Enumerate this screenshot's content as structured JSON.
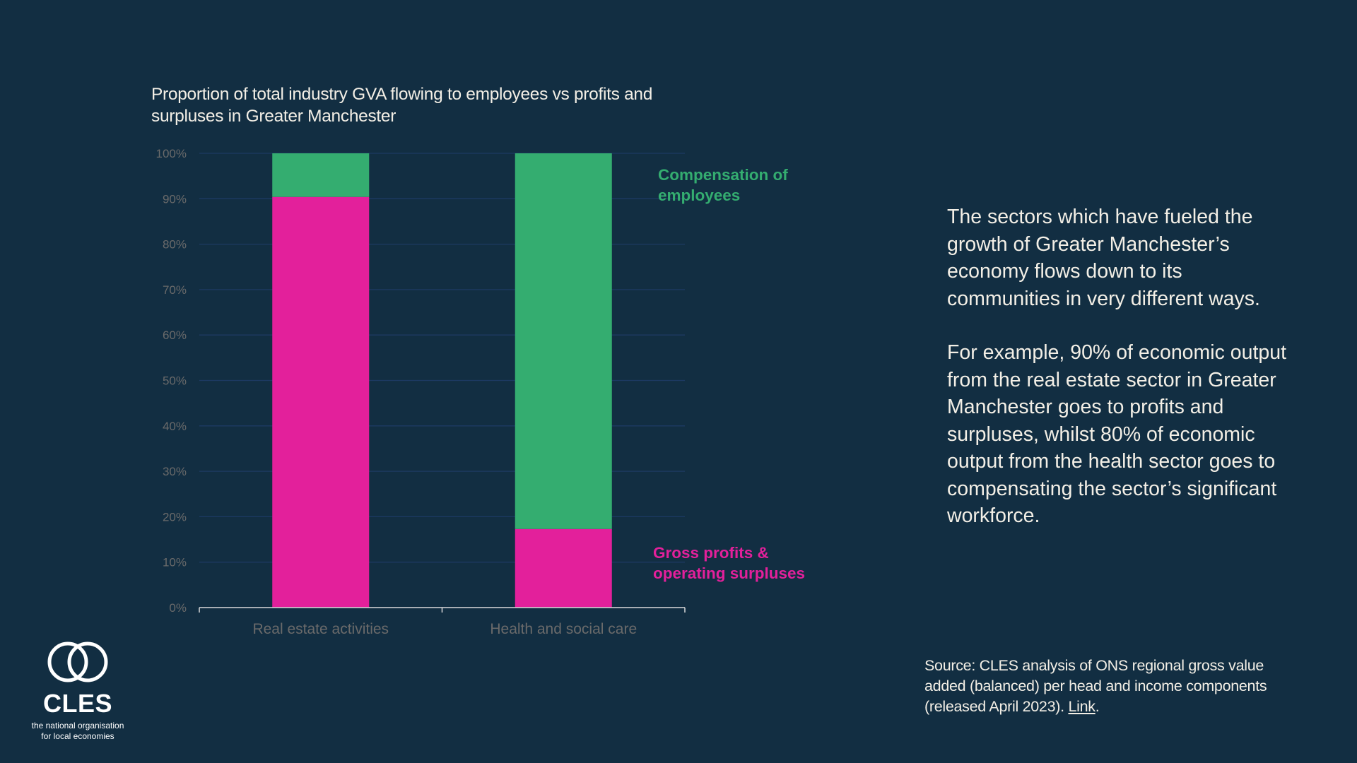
{
  "chart_data": {
    "type": "bar",
    "stacked": true,
    "title": "Proportion of total industry GVA flowing to employees vs profits and surpluses in Greater Manchester",
    "categories": [
      "Real estate activities",
      "Health and social care"
    ],
    "series": [
      {
        "name": "Gross profits & operating surpluses",
        "color": "#e3209b",
        "values": [
          90.4,
          17.3
        ]
      },
      {
        "name": "Compensation of employees",
        "color": "#34ad70",
        "values": [
          9.6,
          82.7
        ]
      }
    ],
    "xlabel": "",
    "ylabel": "",
    "ylim": [
      0,
      100
    ],
    "yticks": [
      0,
      10,
      20,
      30,
      40,
      50,
      60,
      70,
      80,
      90,
      100
    ],
    "ytick_format": "{v}%",
    "grid": true,
    "legend": "right (direct labels beside second bar)"
  },
  "labels": {
    "compensation": "Compensation of employees",
    "compensation_line1": "Compensation of",
    "compensation_line2": "employees",
    "profits_line1": "Gross profits &",
    "profits_line2": "operating surpluses"
  },
  "narrative": {
    "paragraph1": "The sectors which have fueled the growth of Greater Manchester’s economy flows down to its communities in very different ways.",
    "paragraph2": "For example, 90% of economic output from the real estate sector in Greater Manchester goes to profits and surpluses, whilst 80% of economic output from the health sector goes to compensating the sector’s significant workforce."
  },
  "source": {
    "text": "Source: CLES analysis of ONS regional gross value added (balanced) per head and income components (released April 2023). ",
    "link_label": "Link",
    "trailing": "."
  },
  "logo": {
    "wordmark": "CLES",
    "tagline_line1": "the national organisation",
    "tagline_line2": "for local economies"
  },
  "colors": {
    "background": "#122e42",
    "profits": "#e3209b",
    "compensation": "#34ad70",
    "gridline": "#1d3a63",
    "axis": "#d9d9d9",
    "tick_text": "#6a6a6a"
  }
}
